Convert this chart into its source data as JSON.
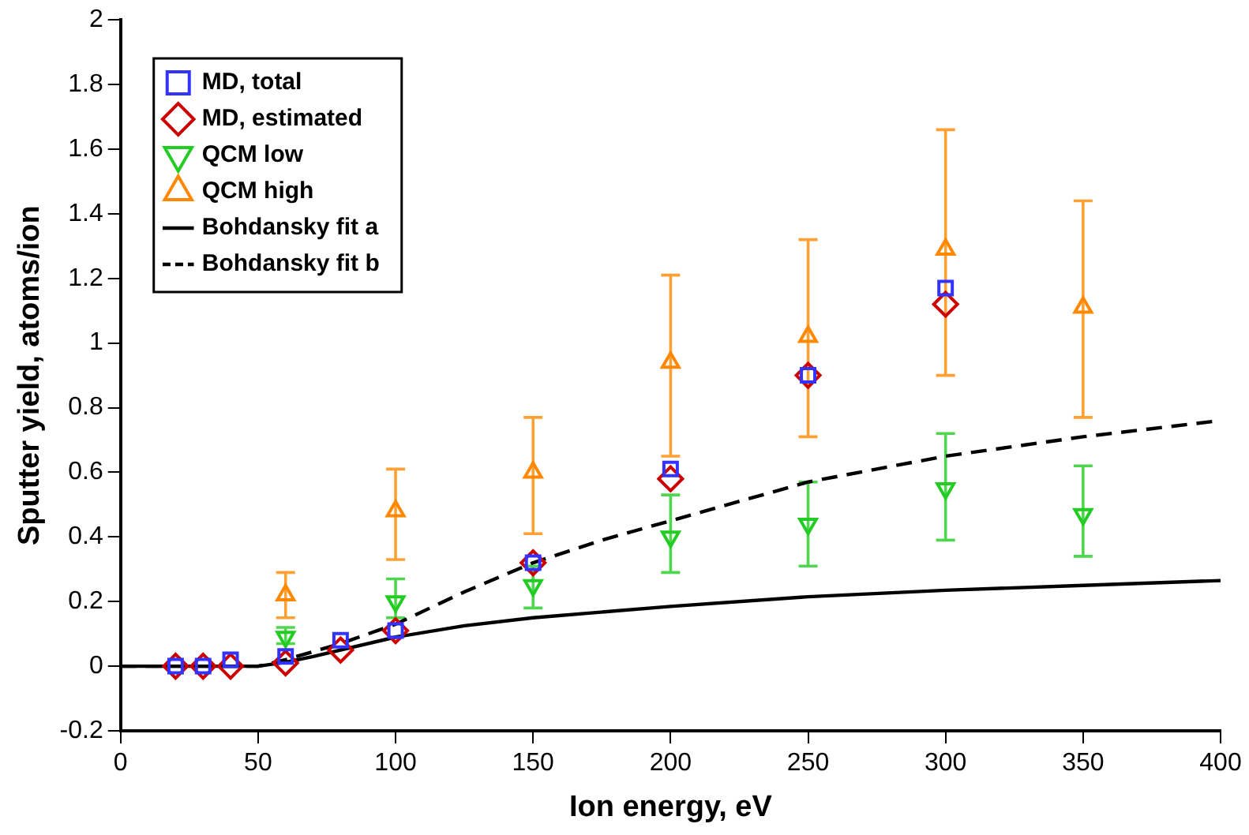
{
  "chart_data": {
    "type": "scatter",
    "xlabel": "Ion energy, eV",
    "ylabel": "Sputter yield, atoms/ion",
    "xlim": [
      0,
      400
    ],
    "xticks": [
      0,
      50,
      100,
      150,
      200,
      250,
      300,
      350,
      400
    ],
    "ylim": [
      -0.2,
      2
    ],
    "yticks": [
      -0.2,
      0,
      0.2,
      0.4,
      0.6,
      0.8,
      1,
      1.2,
      1.4,
      1.6,
      1.8,
      2
    ],
    "grid": false,
    "legend": "top left",
    "series": [
      {
        "name": "MD, total",
        "color": "#3333ff",
        "marker": "square",
        "x": [
          20,
          30,
          40,
          60,
          80,
          100,
          150,
          200,
          250,
          300
        ],
        "values": [
          0,
          0,
          0.02,
          0.03,
          0.08,
          0.11,
          0.32,
          0.61,
          0.9,
          1.17
        ]
      },
      {
        "name": "MD, estimated",
        "color": "#cc0000",
        "marker": "diamond",
        "x": [
          20,
          30,
          40,
          60,
          80,
          100,
          150,
          200,
          250,
          300
        ],
        "values": [
          0,
          0,
          0,
          0.01,
          0.05,
          0.11,
          0.32,
          0.58,
          0.9,
          1.12
        ]
      },
      {
        "name": "QCM low",
        "color": "#22cc22",
        "marker": "triangle-down",
        "x": [
          60,
          100,
          150,
          200,
          250,
          300,
          350
        ],
        "values": [
          0.09,
          0.2,
          0.25,
          0.4,
          0.44,
          0.55,
          0.47
        ],
        "errors": [
          [
            0.07,
            0.12
          ],
          [
            0.15,
            0.27
          ],
          [
            0.18,
            0.31
          ],
          [
            0.29,
            0.53
          ],
          [
            0.31,
            0.57
          ],
          [
            0.39,
            0.72
          ],
          [
            0.34,
            0.62
          ]
        ]
      },
      {
        "name": "QCM high",
        "color": "#ff8800",
        "marker": "triangle",
        "x": [
          60,
          100,
          150,
          200,
          250,
          300,
          350
        ],
        "values": [
          0.22,
          0.48,
          0.6,
          0.94,
          1.02,
          1.29,
          1.11
        ],
        "errors": [
          [
            0.15,
            0.29
          ],
          [
            0.33,
            0.61
          ],
          [
            0.41,
            0.77
          ],
          [
            0.65,
            1.21
          ],
          [
            0.71,
            1.32
          ],
          [
            0.9,
            1.66
          ],
          [
            0.77,
            1.44
          ]
        ]
      },
      {
        "name": "Bohdansky fit a",
        "type": "line",
        "color": "#000000",
        "marker": "none",
        "line_style": "solid",
        "x": [
          0,
          40,
          50,
          60,
          70,
          80,
          100,
          125,
          150,
          200,
          250,
          300,
          350,
          400
        ],
        "values": [
          0,
          0,
          0,
          0.012,
          0.03,
          0.05,
          0.09,
          0.125,
          0.15,
          0.185,
          0.215,
          0.235,
          0.25,
          0.265
        ]
      },
      {
        "name": "Bohdansky fit b",
        "type": "line",
        "color": "#000000",
        "marker": "none",
        "line_style": "dashed",
        "x": [
          0,
          40,
          50,
          60,
          80,
          100,
          125,
          150,
          175,
          200,
          250,
          300,
          350,
          400
        ],
        "values": [
          0,
          0,
          0,
          0.02,
          0.07,
          0.13,
          0.23,
          0.32,
          0.39,
          0.45,
          0.57,
          0.65,
          0.71,
          0.76
        ]
      }
    ]
  }
}
